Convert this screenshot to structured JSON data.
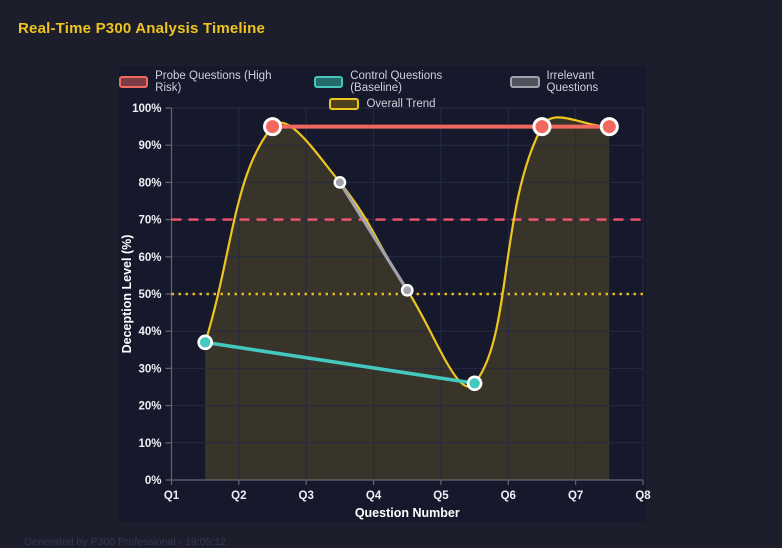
{
  "header": {
    "title": "Real-Time P300 Analysis Timeline"
  },
  "footer": {
    "generated": "Generated by P300 Professional - 19:05:12"
  },
  "colors": {
    "background": "#1c1e2b",
    "panel": "#16182c",
    "title": "#f0c41e",
    "grid": "#262a44",
    "axis": "#63676f",
    "tick_label": "#eef0f5",
    "axis_title": "#ffffff",
    "legend_text": "#cfd1d9",
    "point_border": "#ffffff",
    "footer_text": "#343850"
  },
  "chart_data": {
    "type": "line",
    "title": "Real-Time P300 Analysis Timeline",
    "xlabel": "Question Number",
    "ylabel": "Deception Level (%)",
    "xlim": [
      1,
      8
    ],
    "ylim": [
      0,
      100
    ],
    "grid": true,
    "legend_position": "top",
    "x_tick_values": [
      1,
      2,
      3,
      4,
      5,
      6,
      7,
      8
    ],
    "x_ticks": [
      "Q1",
      "Q2",
      "Q3",
      "Q4",
      "Q5",
      "Q6",
      "Q7",
      "Q8"
    ],
    "y_tick_values": [
      0,
      10,
      20,
      30,
      40,
      50,
      60,
      70,
      80,
      90,
      100
    ],
    "y_ticks": [
      "0%",
      "10%",
      "20%",
      "30%",
      "40%",
      "50%",
      "60%",
      "70%",
      "80%",
      "90%",
      "100%"
    ],
    "series": [
      {
        "name": "Probe Questions (High Risk)",
        "color": "#f1685f",
        "swatch_fill": "#7c3c45",
        "x": [
          2.5,
          6.5,
          7.5
        ],
        "y": [
          95,
          95,
          95
        ],
        "line_width": 4,
        "point_radius": 8,
        "point_border_width": 3,
        "smooth": false
      },
      {
        "name": "Control Questions (Baseline)",
        "color": "#45c8be",
        "swatch_fill": "#256b69",
        "x": [
          1.5,
          5.5
        ],
        "y": [
          37,
          26
        ],
        "line_width": 3.6,
        "point_radius": 6.5,
        "point_border_width": 2.6,
        "smooth": false
      },
      {
        "name": "Irrelevant Questions",
        "color": "#a2a2ac",
        "swatch_fill": "#50525e",
        "x": [
          3.5,
          4.5
        ],
        "y": [
          80,
          51
        ],
        "line_width": 3.2,
        "point_radius": 5.2,
        "point_border_width": 2.4,
        "smooth": false
      },
      {
        "name": "Overall Trend",
        "color": "#eec51f",
        "swatch_fill": "#4c431e",
        "x": [
          1.5,
          2.5,
          3.5,
          4.5,
          5.5,
          6.5,
          7.5
        ],
        "y": [
          37,
          95,
          80,
          51,
          26,
          95,
          95
        ],
        "line_width": 2.2,
        "point_radius": 0,
        "point_border_width": 0,
        "smooth": true,
        "tension": 0.4,
        "fill": true,
        "fill_color": "rgba(238,197,31,0.16)"
      }
    ],
    "thresholds": [
      {
        "value": 70,
        "color": "#f2566c",
        "style": "dashed"
      },
      {
        "value": 50,
        "color": "#e7ba17",
        "style": "dotted"
      }
    ]
  }
}
